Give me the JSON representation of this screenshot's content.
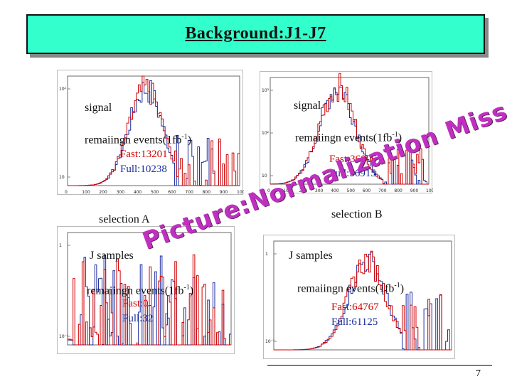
{
  "title": "Background:J1-J7",
  "page_number": "7",
  "watermark": "Picture:Normalization Miss",
  "panels": [
    {
      "label_signal": "signal",
      "label_events": "remaiingn events(1fb",
      "exp": "-1",
      "exp_close": ")",
      "fast": "Fast:13201",
      "full": "Full:10238",
      "y_ticks": [
        "10²",
        "10"
      ],
      "x_ticks": [
        "0",
        "100",
        "200",
        "300",
        "400",
        "500",
        "600",
        "700",
        "800",
        "900",
        "1000"
      ]
    },
    {
      "label_signal": "signal",
      "label_events": "remaiingn events(1fb",
      "exp": "-1",
      "exp_close": ")",
      "fast": "Fast:36006",
      "full": "Full:36915",
      "y_ticks": [
        "10³",
        "10²",
        "10"
      ],
      "x_ticks": [
        "0",
        "100",
        "200",
        "300",
        "400",
        "500",
        "600",
        "700",
        "800",
        "900",
        "1000"
      ]
    },
    {
      "label_signal": "J samples",
      "label_events": "remaiingn events(1fb",
      "exp": "-1",
      "exp_close": ")",
      "fast": "Fast:0",
      "full": "Full:32",
      "y_ticks": [
        "1",
        "10⁻¹"
      ],
      "x_ticks": []
    },
    {
      "label_signal": "J samples",
      "label_events": "remaiingn events(1fb",
      "exp": "-1",
      "exp_close": ")",
      "fast": "Fast:64767",
      "full": "Full:61125",
      "y_ticks": [
        "1",
        "10⁻¹"
      ],
      "x_ticks": []
    }
  ],
  "selection_a": "selection A",
  "selection_b": "selection B",
  "colors": {
    "title_bg": "#33ffcc",
    "fast": "#d10000",
    "full": "#1b2c9e",
    "watermark": "#c030c0"
  }
}
